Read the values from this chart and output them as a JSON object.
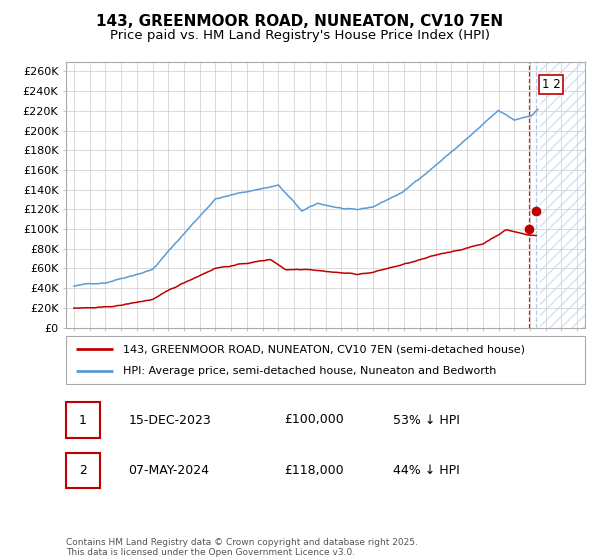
{
  "title": "143, GREENMOOR ROAD, NUNEATON, CV10 7EN",
  "subtitle": "Price paid vs. HM Land Registry's House Price Index (HPI)",
  "ylabel_ticks": [
    "£0",
    "£20K",
    "£40K",
    "£60K",
    "£80K",
    "£100K",
    "£120K",
    "£140K",
    "£160K",
    "£180K",
    "£200K",
    "£220K",
    "£240K",
    "£260K"
  ],
  "ytick_values": [
    0,
    20000,
    40000,
    60000,
    80000,
    100000,
    120000,
    140000,
    160000,
    180000,
    200000,
    220000,
    240000,
    260000
  ],
  "ylim": [
    0,
    270000
  ],
  "xlim_left": 1994.5,
  "xlim_right": 2027.5,
  "hpi_color": "#5b9bd5",
  "price_color": "#c00000",
  "vline_color_1": "#c00000",
  "vline_color_2": "#9dc3e6",
  "hatch_color": "#bdd7ee",
  "marker_color": "#c00000",
  "legend_label_red": "143, GREENMOOR ROAD, NUNEATON, CV10 7EN (semi-detached house)",
  "legend_label_blue": "HPI: Average price, semi-detached house, Nuneaton and Bedworth",
  "sale1_label": "1",
  "sale1_date": "15-DEC-2023",
  "sale1_price": "£100,000",
  "sale1_pct": "53% ↓ HPI",
  "sale2_label": "2",
  "sale2_date": "07-MAY-2024",
  "sale2_price": "£118,000",
  "sale2_pct": "44% ↓ HPI",
  "footnote": "Contains HM Land Registry data © Crown copyright and database right 2025.\nThis data is licensed under the Open Government Licence v3.0.",
  "sale1_x": 2023.96,
  "sale1_y": 100000,
  "sale2_x": 2024.37,
  "sale2_y": 118000,
  "vline1_x": 2023.96,
  "vline2_x": 2024.37,
  "hatch_start": 2024.62,
  "background_color": "#ffffff",
  "grid_color": "#cccccc",
  "title_fontsize": 11,
  "subtitle_fontsize": 9.5,
  "tick_fontsize": 8,
  "legend_fontsize": 8,
  "table_fontsize": 9,
  "footnote_fontsize": 6.5
}
